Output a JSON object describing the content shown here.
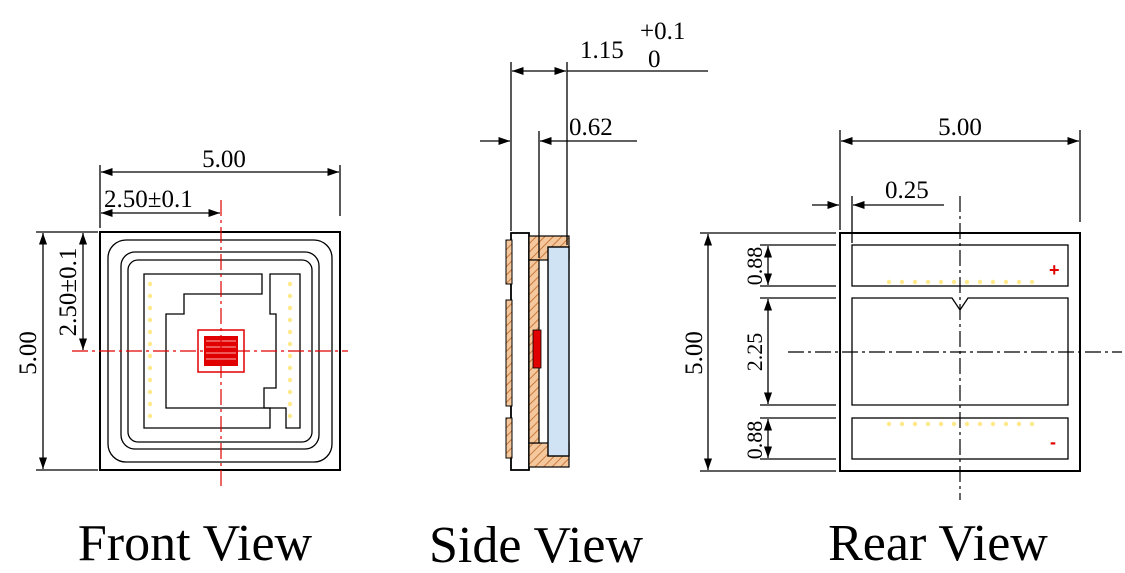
{
  "front_view": {
    "title": "Front View",
    "width_dim": "5.00",
    "height_dim": "5.00",
    "center_x_dim": "2.50±0.1",
    "center_y_dim": "2.50±0.1"
  },
  "side_view": {
    "title": "Side View",
    "total_thickness_main": "1.15",
    "total_thickness_tol_upper": "+0.1",
    "total_thickness_tol_lower": "0",
    "lens_thickness_dim": "0.62"
  },
  "rear_view": {
    "title": "Rear View",
    "width_dim": "5.00",
    "height_dim": "5.00",
    "edge_offset_dim": "0.25",
    "top_pad_dim": "0.88",
    "middle_pad_dim": "2.25",
    "bottom_pad_dim": "0.88",
    "plus_symbol": "+",
    "minus_symbol": "-"
  },
  "colors": {
    "outline": "#000000",
    "centerline": "#e00000",
    "die": "#e00000",
    "lens": "#cfe3f5",
    "solder_dots": "#ffe98a",
    "hatch_substrate": "#c87a3e"
  }
}
